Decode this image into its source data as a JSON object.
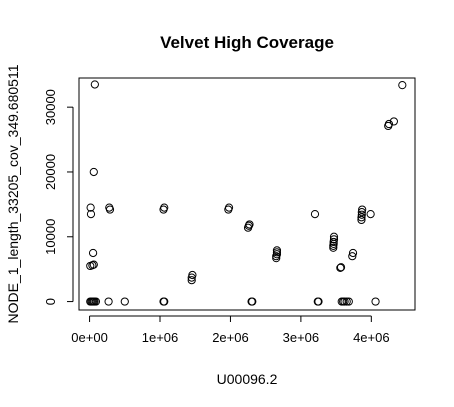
{
  "chart_data": {
    "type": "scatter",
    "title": "Velvet High Coverage",
    "xlabel": "U00096.2",
    "ylabel": "NODE_1_length_33205_cov_349.680511",
    "xlim": [
      -150000,
      4620000
    ],
    "ylim": [
      -1300,
      34500
    ],
    "x_ticks": [
      0,
      1000000,
      2000000,
      3000000,
      4000000
    ],
    "x_tick_labels": [
      "0e+00",
      "1e+06",
      "2e+06",
      "3e+06",
      "4e+06"
    ],
    "y_ticks": [
      0,
      10000,
      20000,
      30000
    ],
    "y_tick_labels": [
      "0",
      "10000",
      "20000",
      "30000"
    ],
    "grid": false,
    "marker": "open-circle",
    "points": [
      [
        10000,
        0
      ],
      [
        25000,
        0
      ],
      [
        40000,
        0
      ],
      [
        55000,
        0
      ],
      [
        70000,
        0
      ],
      [
        90000,
        0
      ],
      [
        10000,
        5500
      ],
      [
        40000,
        5600
      ],
      [
        60000,
        5700
      ],
      [
        50000,
        7500
      ],
      [
        20000,
        13500
      ],
      [
        15000,
        14500
      ],
      [
        60000,
        20000
      ],
      [
        75000,
        33500
      ],
      [
        270000,
        0
      ],
      [
        290000,
        14200
      ],
      [
        280000,
        14500
      ],
      [
        500000,
        0
      ],
      [
        1050000,
        0
      ],
      [
        1060000,
        0
      ],
      [
        1050000,
        14200
      ],
      [
        1060000,
        14500
      ],
      [
        1450000,
        3300
      ],
      [
        1450000,
        3700
      ],
      [
        1460000,
        4100
      ],
      [
        1970000,
        14200
      ],
      [
        1980000,
        14500
      ],
      [
        2250000,
        11400
      ],
      [
        2260000,
        11700
      ],
      [
        2270000,
        11900
      ],
      [
        2300000,
        0
      ],
      [
        2310000,
        0
      ],
      [
        2650000,
        6700
      ],
      [
        2650000,
        7000
      ],
      [
        2660000,
        7300
      ],
      [
        2660000,
        7600
      ],
      [
        2660000,
        7900
      ],
      [
        3200000,
        13500
      ],
      [
        3240000,
        0
      ],
      [
        3250000,
        0
      ],
      [
        3460000,
        8300
      ],
      [
        3460000,
        8600
      ],
      [
        3465000,
        8900
      ],
      [
        3465000,
        9200
      ],
      [
        3470000,
        9600
      ],
      [
        3470000,
        10000
      ],
      [
        3560000,
        5200
      ],
      [
        3570000,
        5300
      ],
      [
        3580000,
        0
      ],
      [
        3600000,
        0
      ],
      [
        3620000,
        0
      ],
      [
        3650000,
        0
      ],
      [
        3680000,
        0
      ],
      [
        3730000,
        7000
      ],
      [
        3740000,
        7500
      ],
      [
        3860000,
        12600
      ],
      [
        3860000,
        13000
      ],
      [
        3865000,
        13400
      ],
      [
        3865000,
        13800
      ],
      [
        3870000,
        14200
      ],
      [
        3990000,
        13500
      ],
      [
        4060000,
        0
      ],
      [
        4240000,
        27100
      ],
      [
        4250000,
        27400
      ],
      [
        4320000,
        27800
      ],
      [
        4440000,
        33400
      ]
    ]
  }
}
